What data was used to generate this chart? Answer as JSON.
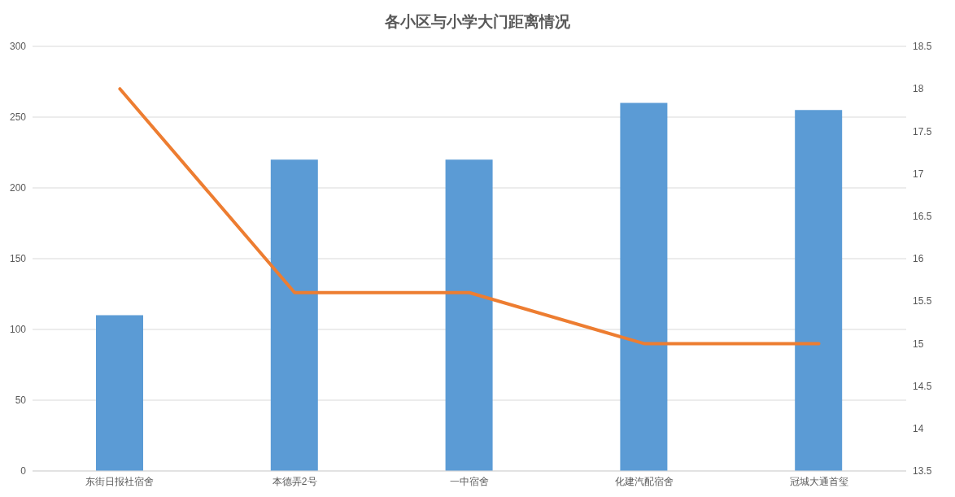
{
  "chart_data": {
    "type": "bar",
    "title": "各小区与小学大门距离情况",
    "categories": [
      "东街日报社宿舍",
      "本德弄2号",
      "一中宿舍",
      "化建汽配宿舍",
      "冠城大通首玺"
    ],
    "series": [
      {
        "color": "#5b9bd5",
        "values": [
          110,
          220,
          220,
          260,
          255
        ]
      },
      {
        "type": "line",
        "axis": "y2",
        "color": "#ed7d31",
        "values": [
          18,
          15.6,
          15.6,
          15,
          15
        ]
      }
    ],
    "ylim": [
      0,
      300
    ],
    "yticks": [
      0,
      50,
      100,
      150,
      200,
      250,
      300
    ],
    "y2lim": [
      13.5,
      18.5
    ],
    "y2ticks": [
      13.5,
      14,
      14.5,
      15,
      15.5,
      16,
      16.5,
      17,
      17.5,
      18,
      18.5
    ],
    "grid": "y",
    "line_style": "solid"
  }
}
